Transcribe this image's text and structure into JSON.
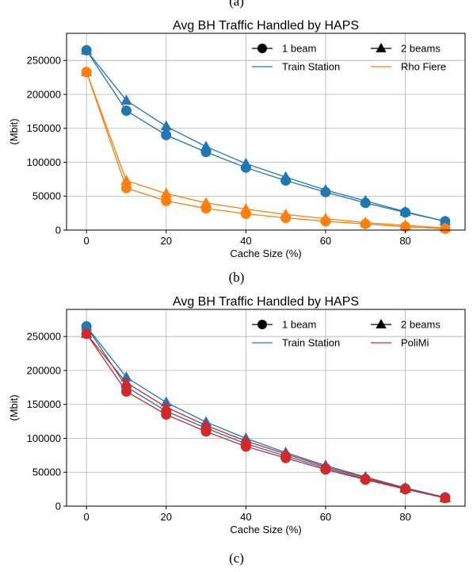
{
  "captions": [
    "(a)",
    "(b)",
    "(c)"
  ],
  "chart_data": [
    {
      "type": "line",
      "title": "Avg BH Traffic Handled by HAPS",
      "xlabel": "Cache Size (%)",
      "ylabel": "(Mbit)",
      "xlim": [
        -5,
        95
      ],
      "ylim": [
        0,
        290000
      ],
      "xticks": [
        0,
        20,
        40,
        60,
        80
      ],
      "yticks": [
        0,
        50000,
        100000,
        150000,
        200000,
        250000
      ],
      "grid": true,
      "legend_position": "top-right",
      "legend": {
        "markers": [
          {
            "label": "1 beam",
            "marker": "circle"
          },
          {
            "label": "2 beams",
            "marker": "triangle"
          }
        ],
        "lines": [
          {
            "label": "Train Station",
            "color": "#1f77b4"
          },
          {
            "label": "Rho Fiere",
            "color": "#ff7f0e"
          }
        ]
      },
      "x": [
        0,
        10,
        20,
        30,
        40,
        50,
        60,
        70,
        80,
        90
      ],
      "series": [
        {
          "location": "Train Station",
          "beams": "1 beam",
          "marker": "circle",
          "color": "#1f77b4",
          "values": [
            265000,
            176000,
            140000,
            115000,
            92000,
            73000,
            56000,
            40000,
            26000,
            13000
          ]
        },
        {
          "location": "Train Station",
          "beams": "2 beams",
          "marker": "triangle",
          "color": "#1f77b4",
          "values": [
            265000,
            191000,
            153000,
            123000,
            98000,
            78000,
            59000,
            43000,
            27000,
            13000
          ]
        },
        {
          "location": "Rho Fiere",
          "beams": "1 beam",
          "marker": "circle",
          "color": "#ff7f0e",
          "values": [
            233000,
            62000,
            43000,
            32000,
            24000,
            18000,
            13000,
            9000,
            5000,
            2000
          ]
        },
        {
          "location": "Rho Fiere",
          "beams": "2 beams",
          "marker": "triangle",
          "color": "#ff7f0e",
          "values": [
            233000,
            73000,
            54000,
            40000,
            31000,
            23000,
            17000,
            11000,
            7000,
            3000
          ]
        }
      ]
    },
    {
      "type": "line",
      "title": "Avg BH Traffic Handled by HAPS",
      "xlabel": "Cache Size (%)",
      "ylabel": "(Mbit)",
      "xlim": [
        -5,
        95
      ],
      "ylim": [
        0,
        290000
      ],
      "xticks": [
        0,
        20,
        40,
        60,
        80
      ],
      "yticks": [
        0,
        50000,
        100000,
        150000,
        200000,
        250000
      ],
      "grid": true,
      "legend_position": "top-right",
      "legend": {
        "markers": [
          {
            "label": "1 beam",
            "marker": "circle"
          },
          {
            "label": "2 beams",
            "marker": "triangle"
          }
        ],
        "lines": [
          {
            "label": "Train Station",
            "color": "#1f77b4"
          },
          {
            "label": "PoliMi",
            "color": "#d62728"
          }
        ]
      },
      "x": [
        0,
        10,
        20,
        30,
        40,
        50,
        60,
        70,
        80,
        90
      ],
      "series": [
        {
          "location": "Train Station",
          "beams": "1 beam",
          "marker": "circle",
          "color": "#1f77b4",
          "values": [
            265000,
            176000,
            140000,
            115000,
            92000,
            74000,
            56000,
            40000,
            26000,
            13000
          ]
        },
        {
          "location": "Train Station",
          "beams": "2 beams",
          "marker": "triangle",
          "color": "#1f77b4",
          "values": [
            265000,
            190000,
            153000,
            124000,
            100000,
            79000,
            60000,
            43000,
            27000,
            13000
          ]
        },
        {
          "location": "PoliMi",
          "beams": "1 beam",
          "marker": "circle",
          "color": "#d62728",
          "values": [
            254000,
            169000,
            135000,
            110000,
            88000,
            71000,
            54000,
            39000,
            25000,
            12000
          ]
        },
        {
          "location": "PoliMi",
          "beams": "2 beams",
          "marker": "triangle",
          "color": "#d62728",
          "values": [
            254000,
            182000,
            146000,
            119000,
            96000,
            77000,
            58000,
            42000,
            26000,
            12000
          ]
        }
      ]
    }
  ]
}
